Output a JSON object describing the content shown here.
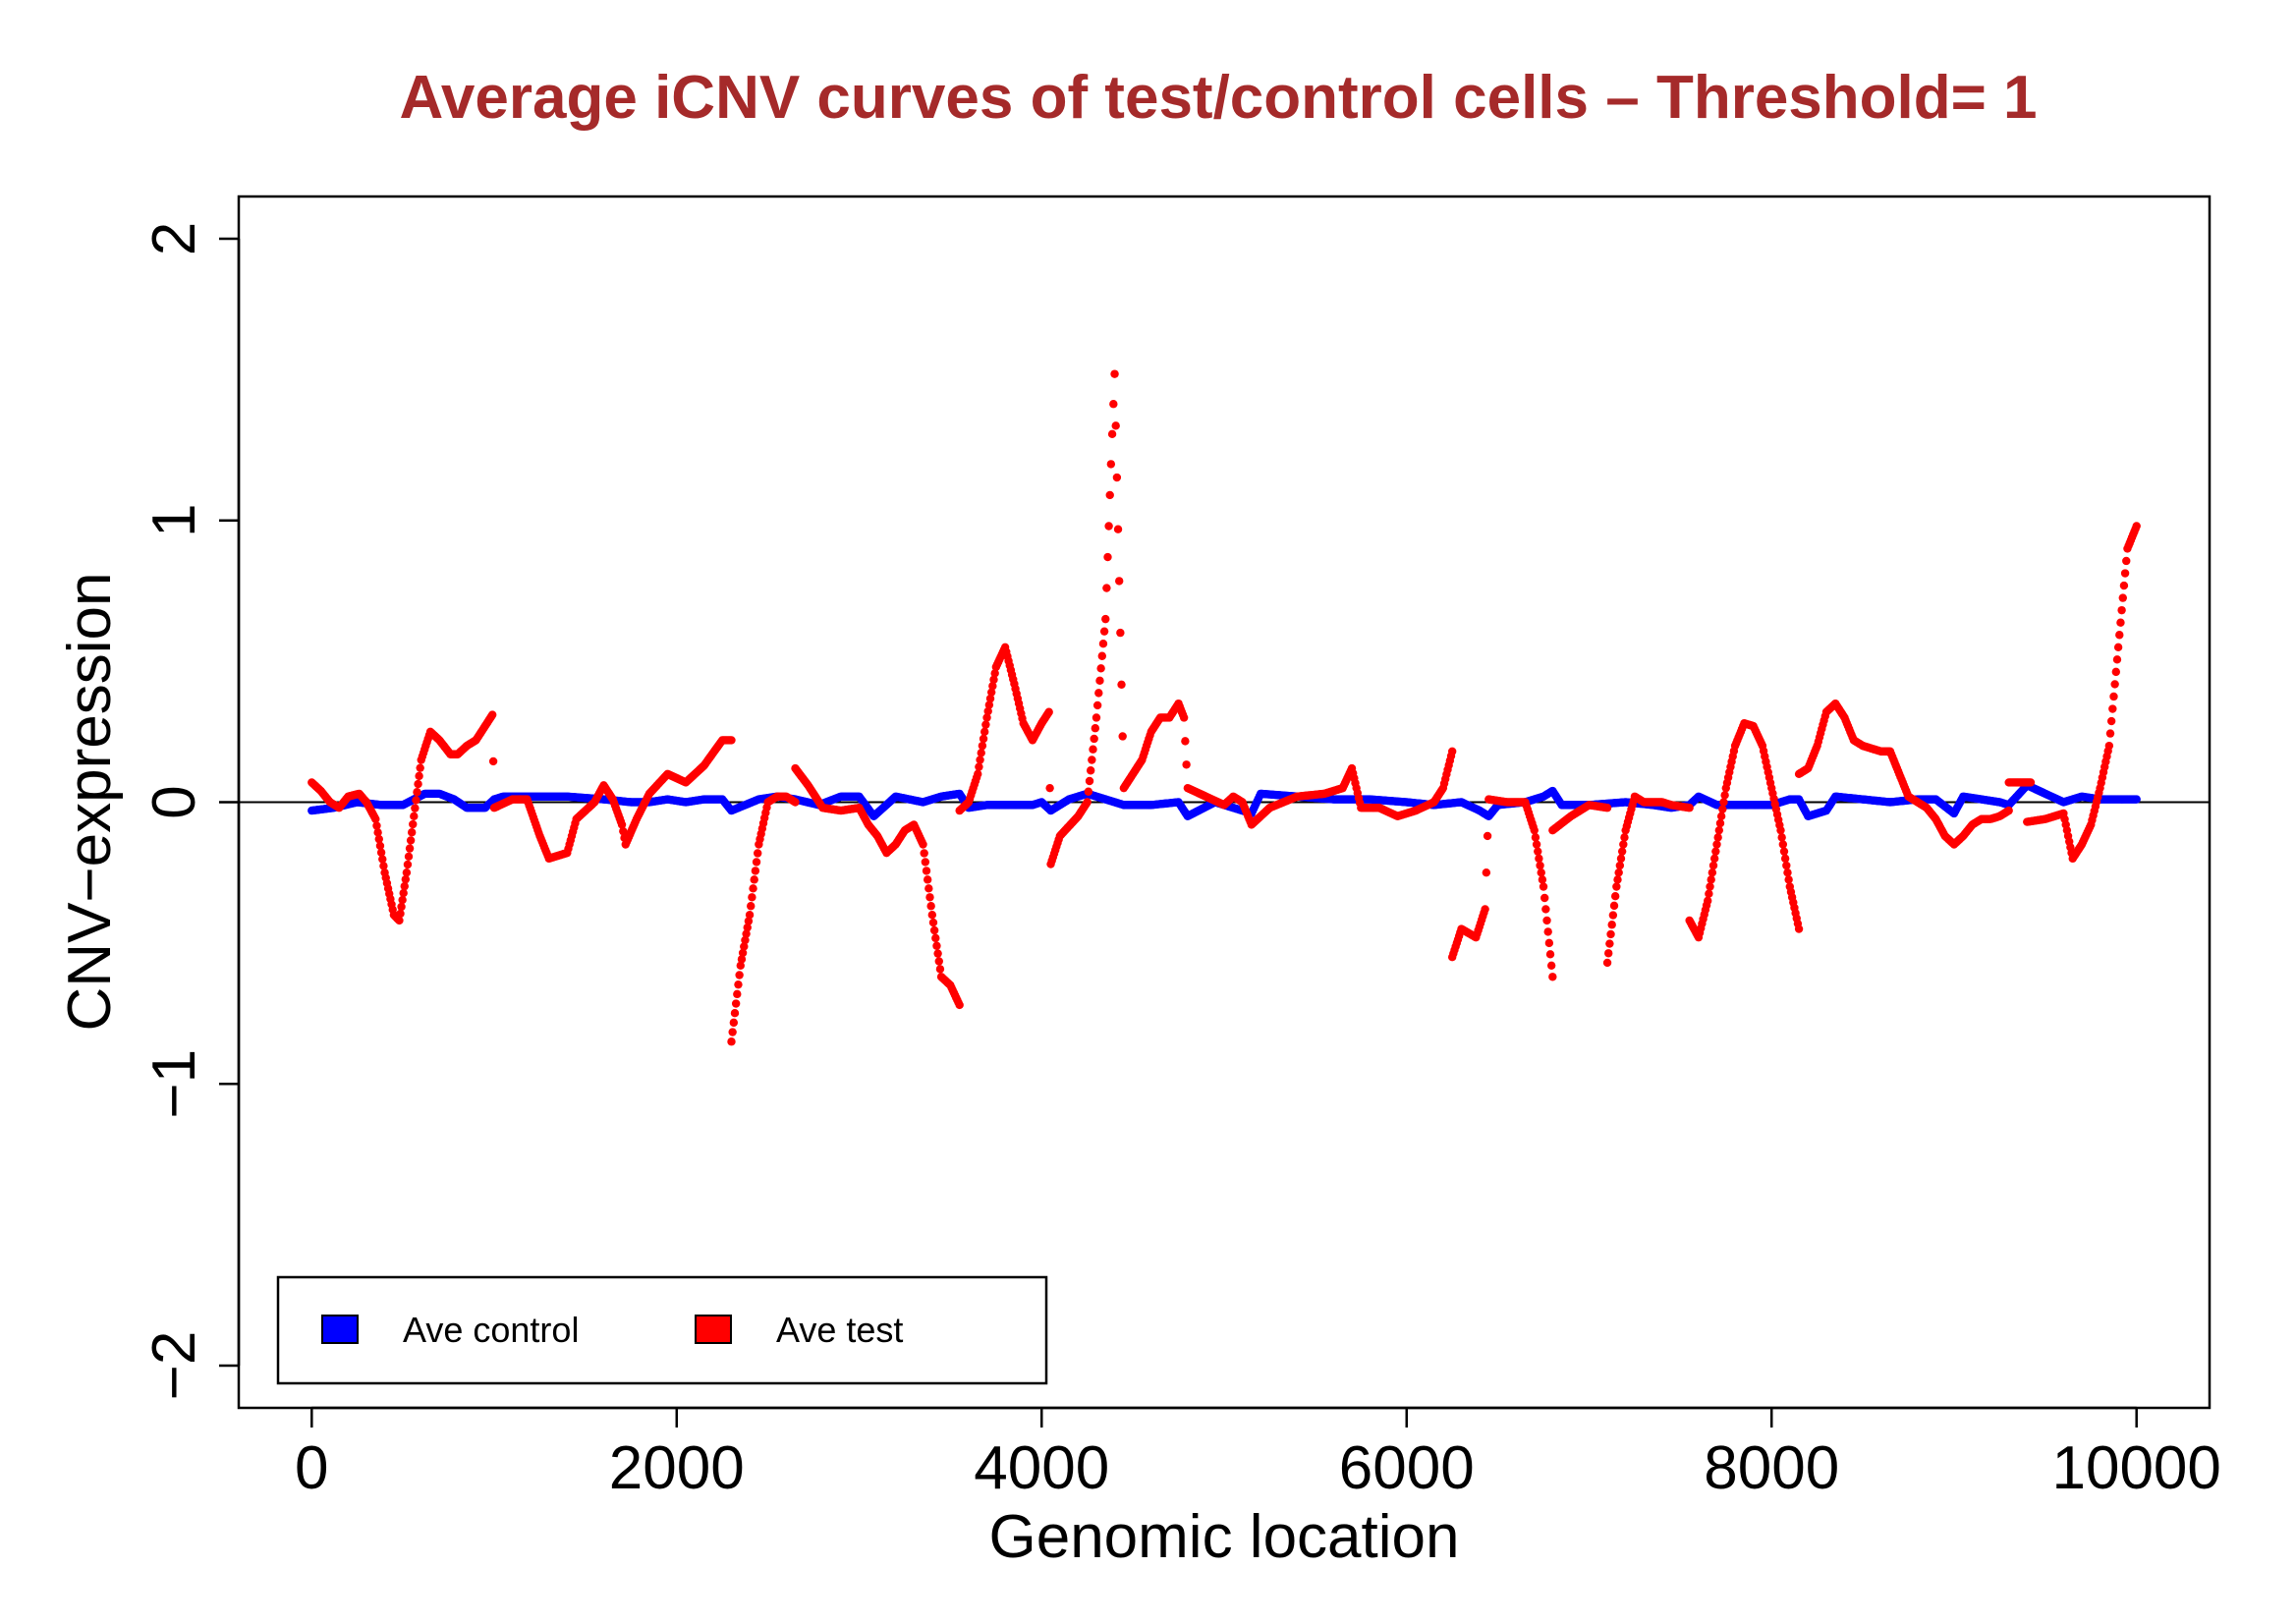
{
  "chart_data": {
    "type": "scatter",
    "title": "Average iCNV curves of test/control cells – Threshold= 1",
    "title_color": "#a52a2a",
    "xlabel": "Genomic location",
    "ylabel": "CNV−expression",
    "xlim": [
      -400,
      10400
    ],
    "ylim": [
      -2.15,
      2.15
    ],
    "x_ticks": [
      0,
      2000,
      4000,
      6000,
      8000,
      10000
    ],
    "x_tick_labels": [
      "0",
      "2000",
      "4000",
      "6000",
      "8000",
      "10000"
    ],
    "y_ticks": [
      -2,
      -1,
      0,
      1,
      2
    ],
    "y_tick_labels": [
      "−2",
      "−1",
      "0",
      "1",
      "2"
    ],
    "hline": 0,
    "grid": false,
    "legend_position": "bottom-left",
    "series": [
      {
        "name": "Ave control",
        "color": "#0000ff",
        "points": [
          [
            0,
            -0.03
          ],
          [
            120,
            -0.02
          ],
          [
            250,
            0.0
          ],
          [
            380,
            -0.01
          ],
          [
            500,
            -0.01
          ],
          [
            620,
            0.03
          ],
          [
            700,
            0.03
          ],
          [
            780,
            0.01
          ],
          [
            850,
            -0.02
          ],
          [
            950,
            -0.02
          ],
          [
            1000,
            0.01
          ],
          [
            1050,
            0.02
          ],
          [
            1200,
            0.02
          ],
          [
            1400,
            0.02
          ],
          [
            1600,
            0.01
          ],
          [
            1750,
            0.0
          ],
          [
            1850,
            0.0
          ],
          [
            1950,
            0.01
          ],
          [
            2050,
            0.0
          ],
          [
            2150,
            0.01
          ],
          [
            2250,
            0.01
          ],
          [
            2300,
            -0.03
          ],
          [
            2450,
            0.01
          ],
          [
            2550,
            0.02
          ],
          [
            2650,
            0.01
          ],
          [
            2780,
            -0.01
          ],
          [
            2900,
            0.02
          ],
          [
            3000,
            0.02
          ],
          [
            3080,
            -0.05
          ],
          [
            3200,
            0.02
          ],
          [
            3350,
            0.0
          ],
          [
            3450,
            0.02
          ],
          [
            3550,
            0.03
          ],
          [
            3600,
            -0.02
          ],
          [
            3700,
            -0.01
          ],
          [
            3850,
            -0.01
          ],
          [
            3950,
            -0.01
          ],
          [
            4000,
            0.0
          ],
          [
            4050,
            -0.03
          ],
          [
            4150,
            0.01
          ],
          [
            4250,
            0.03
          ],
          [
            4350,
            0.01
          ],
          [
            4450,
            -0.01
          ],
          [
            4600,
            -0.01
          ],
          [
            4750,
            0.0
          ],
          [
            4800,
            -0.05
          ],
          [
            4950,
            0.0
          ],
          [
            5050,
            -0.02
          ],
          [
            5150,
            -0.04
          ],
          [
            5200,
            0.03
          ],
          [
            5400,
            0.02
          ],
          [
            5600,
            0.01
          ],
          [
            5800,
            0.01
          ],
          [
            6000,
            0.0
          ],
          [
            6150,
            -0.01
          ],
          [
            6300,
            0.0
          ],
          [
            6400,
            -0.03
          ],
          [
            6450,
            -0.05
          ],
          [
            6500,
            -0.01
          ],
          [
            6650,
            0.0
          ],
          [
            6750,
            0.02
          ],
          [
            6800,
            0.04
          ],
          [
            6850,
            -0.01
          ],
          [
            7000,
            -0.01
          ],
          [
            7200,
            0.0
          ],
          [
            7350,
            -0.01
          ],
          [
            7450,
            -0.02
          ],
          [
            7550,
            -0.01
          ],
          [
            7600,
            0.02
          ],
          [
            7700,
            -0.01
          ],
          [
            7850,
            -0.01
          ],
          [
            8000,
            -0.01
          ],
          [
            8100,
            0.01
          ],
          [
            8150,
            0.01
          ],
          [
            8200,
            -0.05
          ],
          [
            8300,
            -0.03
          ],
          [
            8350,
            0.02
          ],
          [
            8500,
            0.01
          ],
          [
            8650,
            0.0
          ],
          [
            8800,
            0.01
          ],
          [
            8900,
            0.01
          ],
          [
            9000,
            -0.04
          ],
          [
            9050,
            0.02
          ],
          [
            9150,
            0.01
          ],
          [
            9250,
            0.0
          ],
          [
            9300,
            -0.01
          ],
          [
            9400,
            0.06
          ],
          [
            9500,
            0.03
          ],
          [
            9600,
            0.0
          ],
          [
            9700,
            0.02
          ],
          [
            9800,
            0.01
          ],
          [
            9900,
            0.01
          ],
          [
            10000,
            0.01
          ]
        ]
      },
      {
        "name": "Ave test",
        "color": "#ff0000",
        "points": [
          [
            0,
            0.07
          ],
          [
            50,
            0.04
          ],
          [
            100,
            0.0
          ],
          [
            150,
            -0.02
          ],
          [
            200,
            0.02
          ],
          [
            260,
            0.03
          ],
          [
            300,
            0.0
          ],
          [
            350,
            -0.06
          ],
          [
            400,
            -0.25
          ],
          [
            450,
            -0.4
          ],
          [
            480,
            -0.42
          ],
          [
            520,
            -0.25
          ],
          [
            560,
            -0.05
          ],
          [
            600,
            0.15
          ],
          [
            650,
            0.25
          ],
          [
            700,
            0.22
          ],
          [
            760,
            0.17
          ],
          [
            800,
            0.17
          ],
          [
            850,
            0.2
          ],
          [
            900,
            0.22
          ],
          [
            950,
            0.27
          ],
          [
            990,
            0.31
          ],
          [
            1000,
            -0.02
          ],
          [
            1100,
            0.01
          ],
          [
            1180,
            0.01
          ],
          [
            1250,
            -0.12
          ],
          [
            1300,
            -0.2
          ],
          [
            1400,
            -0.18
          ],
          [
            1450,
            -0.06
          ],
          [
            1500,
            -0.03
          ],
          [
            1550,
            0.0
          ],
          [
            1600,
            0.06
          ],
          [
            1650,
            0.01
          ],
          [
            1700,
            -0.08
          ],
          [
            1720,
            -0.15
          ],
          [
            1780,
            -0.06
          ],
          [
            1850,
            0.03
          ],
          [
            1950,
            0.1
          ],
          [
            2050,
            0.07
          ],
          [
            2150,
            0.13
          ],
          [
            2250,
            0.22
          ],
          [
            2300,
            0.22
          ],
          [
            2300,
            -0.85
          ],
          [
            2350,
            -0.58
          ],
          [
            2400,
            -0.4
          ],
          [
            2450,
            -0.15
          ],
          [
            2500,
            0.0
          ],
          [
            2550,
            0.02
          ],
          [
            2600,
            0.02
          ],
          [
            2650,
            0.0
          ],
          [
            2650,
            0.12
          ],
          [
            2720,
            0.06
          ],
          [
            2800,
            -0.02
          ],
          [
            2900,
            -0.03
          ],
          [
            3000,
            -0.02
          ],
          [
            3050,
            -0.08
          ],
          [
            3100,
            -0.12
          ],
          [
            3150,
            -0.18
          ],
          [
            3200,
            -0.15
          ],
          [
            3250,
            -0.1
          ],
          [
            3300,
            -0.08
          ],
          [
            3350,
            -0.15
          ],
          [
            3400,
            -0.4
          ],
          [
            3450,
            -0.62
          ],
          [
            3500,
            -0.65
          ],
          [
            3550,
            -0.72
          ],
          [
            3550,
            -0.03
          ],
          [
            3600,
            0.0
          ],
          [
            3650,
            0.1
          ],
          [
            3700,
            0.3
          ],
          [
            3750,
            0.48
          ],
          [
            3800,
            0.55
          ],
          [
            3850,
            0.42
          ],
          [
            3900,
            0.28
          ],
          [
            3950,
            0.22
          ],
          [
            4000,
            0.28
          ],
          [
            4040,
            0.32
          ],
          [
            4050,
            -0.22
          ],
          [
            4100,
            -0.12
          ],
          [
            4200,
            -0.05
          ],
          [
            4250,
            0.0
          ],
          [
            4300,
            0.3
          ],
          [
            4350,
            0.65
          ],
          [
            4380,
            1.2
          ],
          [
            4400,
            1.52
          ],
          [
            4450,
            0.05
          ],
          [
            4500,
            0.1
          ],
          [
            4550,
            0.15
          ],
          [
            4600,
            0.25
          ],
          [
            4650,
            0.3
          ],
          [
            4700,
            0.3
          ],
          [
            4750,
            0.35
          ],
          [
            4780,
            0.3
          ],
          [
            4800,
            0.05
          ],
          [
            4900,
            0.02
          ],
          [
            5000,
            -0.01
          ],
          [
            5050,
            0.02
          ],
          [
            5100,
            0.0
          ],
          [
            5150,
            -0.08
          ],
          [
            5250,
            -0.02
          ],
          [
            5400,
            0.02
          ],
          [
            5550,
            0.03
          ],
          [
            5650,
            0.05
          ],
          [
            5700,
            0.12
          ],
          [
            5750,
            -0.02
          ],
          [
            5850,
            -0.02
          ],
          [
            5950,
            -0.05
          ],
          [
            6050,
            -0.03
          ],
          [
            6150,
            0.0
          ],
          [
            6200,
            0.05
          ],
          [
            6250,
            0.18
          ],
          [
            6250,
            -0.55
          ],
          [
            6300,
            -0.45
          ],
          [
            6380,
            -0.48
          ],
          [
            6430,
            -0.38
          ],
          [
            6450,
            0.01
          ],
          [
            6550,
            0.0
          ],
          [
            6650,
            0.0
          ],
          [
            6700,
            -0.1
          ],
          [
            6750,
            -0.3
          ],
          [
            6800,
            -0.62
          ],
          [
            6800,
            -0.1
          ],
          [
            6900,
            -0.05
          ],
          [
            7000,
            -0.01
          ],
          [
            7100,
            -0.02
          ],
          [
            7100,
            -0.57
          ],
          [
            7150,
            -0.3
          ],
          [
            7200,
            -0.1
          ],
          [
            7250,
            0.02
          ],
          [
            7300,
            0.0
          ],
          [
            7400,
            0.0
          ],
          [
            7450,
            -0.01
          ],
          [
            7550,
            -0.02
          ],
          [
            7550,
            -0.42
          ],
          [
            7600,
            -0.48
          ],
          [
            7650,
            -0.35
          ],
          [
            7700,
            -0.15
          ],
          [
            7750,
            0.05
          ],
          [
            7800,
            0.2
          ],
          [
            7850,
            0.28
          ],
          [
            7900,
            0.27
          ],
          [
            7950,
            0.2
          ],
          [
            8000,
            0.05
          ],
          [
            8050,
            -0.1
          ],
          [
            8100,
            -0.3
          ],
          [
            8150,
            -0.45
          ],
          [
            8150,
            0.1
          ],
          [
            8200,
            0.12
          ],
          [
            8250,
            0.2
          ],
          [
            8300,
            0.32
          ],
          [
            8350,
            0.35
          ],
          [
            8400,
            0.3
          ],
          [
            8450,
            0.22
          ],
          [
            8500,
            0.2
          ],
          [
            8600,
            0.18
          ],
          [
            8650,
            0.18
          ],
          [
            8700,
            0.1
          ],
          [
            8750,
            0.02
          ],
          [
            8800,
            0.0
          ],
          [
            8850,
            -0.02
          ],
          [
            8900,
            -0.06
          ],
          [
            8950,
            -0.12
          ],
          [
            9000,
            -0.15
          ],
          [
            9050,
            -0.12
          ],
          [
            9100,
            -0.08
          ],
          [
            9150,
            -0.06
          ],
          [
            9200,
            -0.06
          ],
          [
            9250,
            -0.05
          ],
          [
            9300,
            -0.03
          ],
          [
            9300,
            0.07
          ],
          [
            9420,
            0.07
          ],
          [
            9400,
            -0.07
          ],
          [
            9500,
            -0.06
          ],
          [
            9600,
            -0.04
          ],
          [
            9650,
            -0.2
          ],
          [
            9700,
            -0.15
          ],
          [
            9750,
            -0.08
          ],
          [
            9800,
            0.05
          ],
          [
            9850,
            0.2
          ],
          [
            9900,
            0.55
          ],
          [
            9950,
            0.9
          ],
          [
            10000,
            0.98
          ]
        ]
      }
    ]
  }
}
